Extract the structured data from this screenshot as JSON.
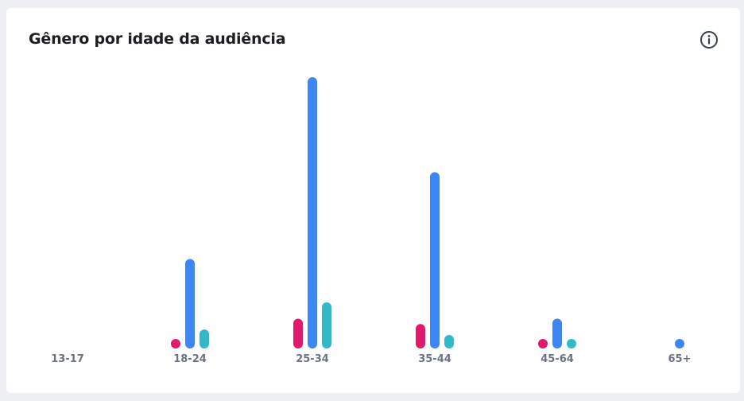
{
  "title": "Gênero por idade da audiência",
  "chart_data": {
    "type": "bar",
    "categories": [
      "13-17",
      "18-24",
      "25-34",
      "35-44",
      "45-64",
      "65+"
    ],
    "series": [
      {
        "color": "#e0196b",
        "values": [
          0,
          1,
          11,
          9,
          3,
          0
        ]
      },
      {
        "color": "#3d86f5",
        "values": [
          0,
          33,
          100,
          65,
          11,
          3
        ]
      },
      {
        "color": "#32b8c6",
        "values": [
          0,
          7,
          17,
          5,
          1,
          0
        ]
      }
    ],
    "ylim": [
      0,
      100
    ],
    "grid": false,
    "legend": "none"
  },
  "icons": {
    "info": "info-circle-icon"
  }
}
